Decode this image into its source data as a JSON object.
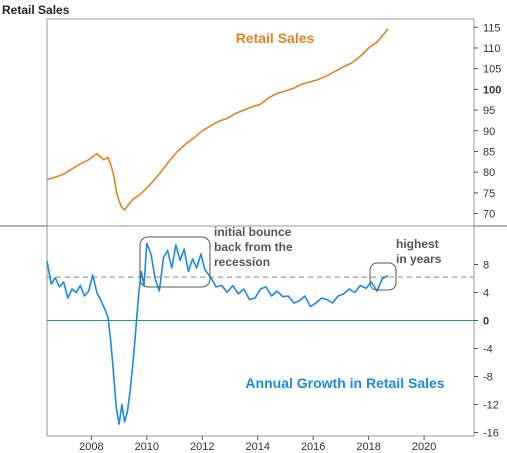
{
  "page_title": "Retail Sales",
  "chart_data": [
    {
      "type": "line",
      "title": "Retail Sales",
      "title_color": "#e6821e",
      "line_color": "#e6821e",
      "xlim": [
        2006.4,
        2021.8
      ],
      "ylim": [
        67,
        117
      ],
      "y_ticks": [
        70,
        75,
        80,
        85,
        90,
        95,
        100,
        105,
        110,
        115
      ],
      "y_tick_labels": [
        "70",
        "75",
        "80",
        "85",
        "90",
        "95",
        "100",
        "105",
        "110",
        "115"
      ],
      "bold_ticks": [
        "100"
      ],
      "series": [
        {
          "x": [
            2006.4,
            2006.7,
            2007.0,
            2007.3,
            2007.6,
            2007.9,
            2008.2,
            2008.45,
            2008.6,
            2008.7,
            2008.8,
            2008.9,
            2009.0,
            2009.1,
            2009.2,
            2009.3,
            2009.5,
            2009.7,
            2009.9,
            2010.2,
            2010.5,
            2010.8,
            2011.1,
            2011.4,
            2011.7,
            2012.0,
            2012.3,
            2012.6,
            2012.9,
            2013.2,
            2013.5,
            2013.8,
            2014.1,
            2014.4,
            2014.7,
            2015.0,
            2015.3,
            2015.6,
            2015.9,
            2016.2,
            2016.5,
            2016.8,
            2017.1,
            2017.4,
            2017.7,
            2018.0,
            2018.3,
            2018.5,
            2018.7
          ],
          "values": [
            78.2,
            78.8,
            79.5,
            80.8,
            82.0,
            83.0,
            84.5,
            83.0,
            83.6,
            81.8,
            79.5,
            75.5,
            73.0,
            71.5,
            70.9,
            71.8,
            73.5,
            74.3,
            75.5,
            77.6,
            80.0,
            82.6,
            85.0,
            86.8,
            88.3,
            90.0,
            91.2,
            92.3,
            93.0,
            94.2,
            95.0,
            95.8,
            96.4,
            98.0,
            99.0,
            99.6,
            100.3,
            101.3,
            101.8,
            102.4,
            103.3,
            104.4,
            105.5,
            106.4,
            108.0,
            110.0,
            111.4,
            113.0,
            114.6
          ]
        }
      ]
    },
    {
      "type": "line",
      "title": "Annual Growth in Retail Sales",
      "title_color": "#1a8ae6",
      "line_color": "#1a8ae6",
      "xlim": [
        2006.4,
        2021.8
      ],
      "ylim": [
        -16.5,
        13.5
      ],
      "x_ticks": [
        2008,
        2010,
        2012,
        2014,
        2016,
        2018,
        2020
      ],
      "x_tick_labels": [
        "2008",
        "2010",
        "2012",
        "2014",
        "2016",
        "2018",
        "2020"
      ],
      "y_ticks": [
        -16,
        -12,
        -8,
        -4,
        0,
        4,
        8
      ],
      "y_tick_labels": [
        "-16",
        "-12",
        "-8",
        "-4",
        "0",
        "4",
        "8"
      ],
      "bold_ticks": [
        "0"
      ],
      "reference_line": 6.2,
      "series": [
        {
          "x": [
            2006.4,
            2006.55,
            2006.7,
            2006.85,
            2007.0,
            2007.15,
            2007.3,
            2007.45,
            2007.6,
            2007.75,
            2007.9,
            2008.05,
            2008.2,
            2008.35,
            2008.5,
            2008.6,
            2008.7,
            2008.8,
            2008.9,
            2009.0,
            2009.1,
            2009.2,
            2009.3,
            2009.4,
            2009.5,
            2009.6,
            2009.7,
            2009.8,
            2009.9,
            2010.0,
            2010.15,
            2010.3,
            2010.45,
            2010.6,
            2010.75,
            2010.9,
            2011.05,
            2011.2,
            2011.35,
            2011.5,
            2011.65,
            2011.8,
            2011.95,
            2012.1,
            2012.3,
            2012.5,
            2012.7,
            2012.9,
            2013.1,
            2013.3,
            2013.5,
            2013.7,
            2013.9,
            2014.1,
            2014.3,
            2014.5,
            2014.7,
            2014.9,
            2015.1,
            2015.3,
            2015.5,
            2015.7,
            2015.9,
            2016.1,
            2016.3,
            2016.5,
            2016.7,
            2016.9,
            2017.1,
            2017.3,
            2017.5,
            2017.7,
            2017.9,
            2018.1,
            2018.3,
            2018.5,
            2018.7
          ],
          "values": [
            8.5,
            5.2,
            6.1,
            4.8,
            5.5,
            3.2,
            4.5,
            4.0,
            5.0,
            3.5,
            4.2,
            6.5,
            4.0,
            2.8,
            1.5,
            0.5,
            -3.0,
            -7.5,
            -12.5,
            -14.8,
            -12.0,
            -14.5,
            -13.0,
            -10.0,
            -6.0,
            -1.5,
            3.5,
            7.0,
            5.0,
            11.0,
            9.5,
            6.0,
            4.2,
            9.0,
            10.0,
            7.5,
            10.8,
            8.6,
            10.2,
            7.0,
            8.8,
            7.5,
            9.5,
            7.2,
            6.2,
            4.8,
            5.0,
            4.0,
            5.0,
            3.8,
            4.5,
            3.0,
            3.2,
            4.5,
            4.8,
            3.5,
            4.2,
            3.4,
            3.5,
            2.5,
            2.8,
            3.5,
            2.0,
            2.5,
            3.2,
            3.0,
            2.5,
            3.5,
            3.8,
            4.5,
            4.0,
            5.0,
            4.6,
            5.5,
            4.2,
            6.0,
            6.4
          ]
        }
      ]
    }
  ],
  "annotations": {
    "bounce_text": [
      "initial bounce",
      "back from the",
      "recession"
    ],
    "highest_text": [
      "highest",
      "in years"
    ]
  }
}
